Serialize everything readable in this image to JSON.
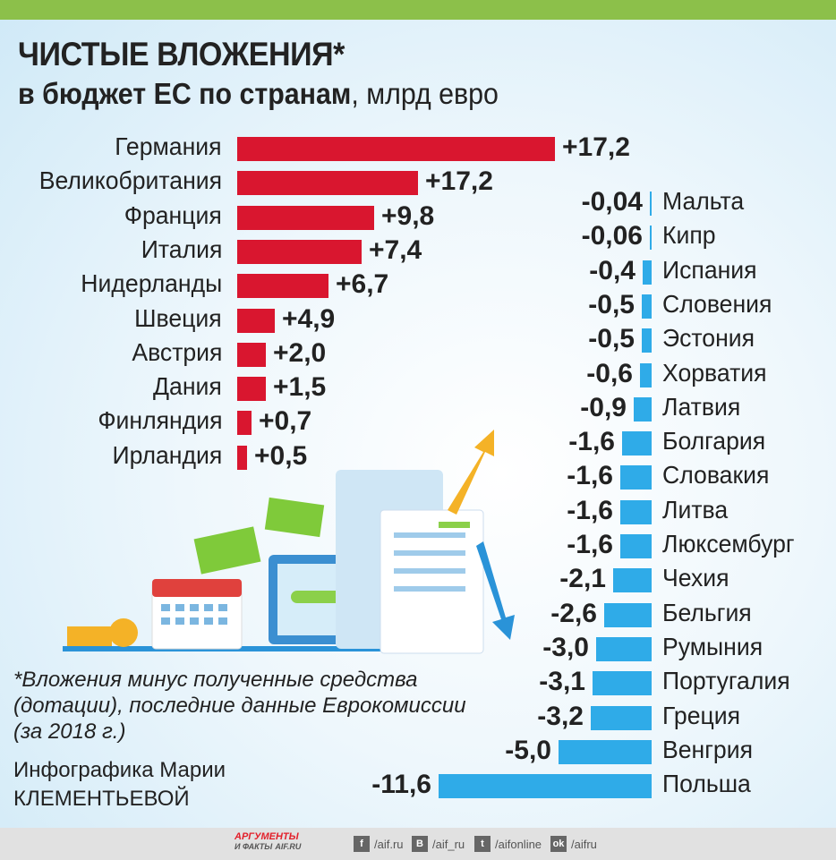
{
  "header": {
    "title": "ЧИСТЫЕ ВЛОЖЕНИЯ*",
    "subtitle_bold": "в бюджет ЕС по странам",
    "subtitle_rest": ", млрд евро"
  },
  "chart_data": {
    "type": "bar",
    "orientation": "horizontal",
    "title": "ЧИСТЫЕ ВЛОЖЕНИЯ* в бюджет ЕС по странам, млрд евро",
    "colors": {
      "positive": "#d9162f",
      "negative": "#2fabe8"
    },
    "positive": [
      {
        "country": "Германия",
        "value": 17.2,
        "label": "+17,2"
      },
      {
        "country": "Великобритания",
        "value": 17.2,
        "label": "+17,2"
      },
      {
        "country": "Франция",
        "value": 9.8,
        "label": "+9,8"
      },
      {
        "country": "Италия",
        "value": 7.4,
        "label": "+7,4"
      },
      {
        "country": "Нидерланды",
        "value": 6.7,
        "label": "+6,7"
      },
      {
        "country": "Швеция",
        "value": 4.9,
        "label": "+4,9"
      },
      {
        "country": "Австрия",
        "value": 2.0,
        "label": "+2,0"
      },
      {
        "country": "Дания",
        "value": 1.5,
        "label": "+1,5"
      },
      {
        "country": "Финляндия",
        "value": 0.7,
        "label": "+0,7"
      },
      {
        "country": "Ирландия",
        "value": 0.5,
        "label": "+0,5"
      }
    ],
    "negative": [
      {
        "country": "Мальта",
        "value": -0.04,
        "label": "-0,04"
      },
      {
        "country": "Кипр",
        "value": -0.06,
        "label": "-0,06"
      },
      {
        "country": "Испания",
        "value": -0.4,
        "label": "-0,4"
      },
      {
        "country": "Словения",
        "value": -0.5,
        "label": "-0,5"
      },
      {
        "country": "Эстония",
        "value": -0.5,
        "label": "-0,5"
      },
      {
        "country": "Хорватия",
        "value": -0.6,
        "label": "-0,6"
      },
      {
        "country": "Латвия",
        "value": -0.9,
        "label": "-0,9"
      },
      {
        "country": "Болгария",
        "value": -1.6,
        "label": "-1,6"
      },
      {
        "country": "Словакия",
        "value": -1.6,
        "label": "-1,6"
      },
      {
        "country": "Литва",
        "value": -1.6,
        "label": "-1,6"
      },
      {
        "country": "Люксембург",
        "value": -1.6,
        "label": "-1,6"
      },
      {
        "country": "Чехия",
        "value": -2.1,
        "label": "-2,1"
      },
      {
        "country": "Бельгия",
        "value": -2.6,
        "label": "-2,6"
      },
      {
        "country": "Румыния",
        "value": -3.0,
        "label": "-3,0"
      },
      {
        "country": "Португалия",
        "value": -3.1,
        "label": "-3,1"
      },
      {
        "country": "Греция",
        "value": -3.2,
        "label": "-3,2"
      },
      {
        "country": "Венгрия",
        "value": -5.0,
        "label": "-5,0"
      },
      {
        "country": "Польша",
        "value": -11.6,
        "label": "-11,6"
      }
    ]
  },
  "note": {
    "text": "*Вложения минус полученные средства (дотации), последние данные Еврокомиссии (за 2018 г.)",
    "credit_line1": "Инфографика Марии",
    "credit_line2": "КЛЕМЕНТЬЕВОЙ"
  },
  "footer": {
    "logo_line1": "АРГУМЕНТЫ",
    "logo_line2": "И ФАКТЫ",
    "logo_site": "AIF.RU",
    "social": [
      {
        "icon": "facebook-icon",
        "glyph": "f",
        "handle": "/aif.ru"
      },
      {
        "icon": "vk-icon",
        "glyph": "B",
        "handle": "/aif_ru"
      },
      {
        "icon": "twitter-icon",
        "glyph": "t",
        "handle": "/aifonline"
      },
      {
        "icon": "odnoklassniki-icon",
        "glyph": "ok",
        "handle": "/aifru"
      }
    ]
  }
}
